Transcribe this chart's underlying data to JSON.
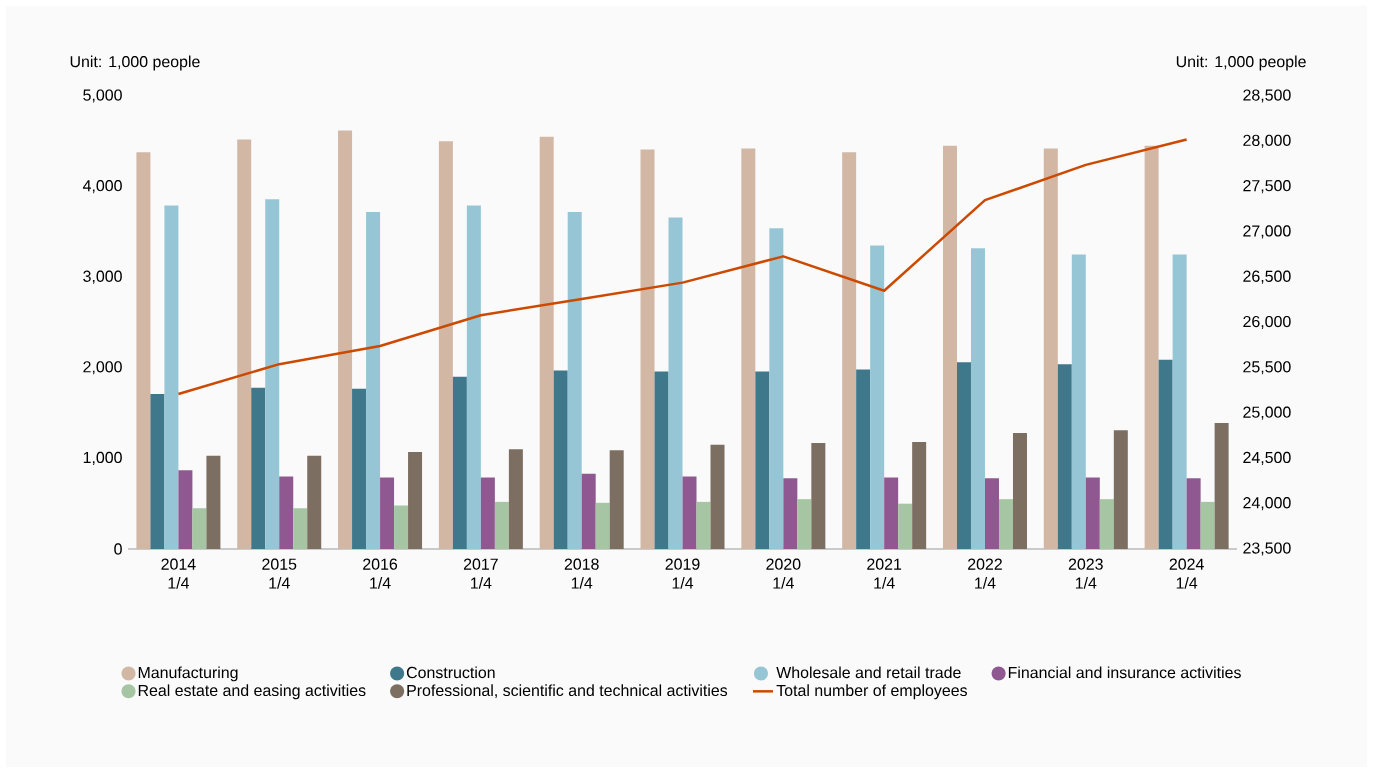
{
  "chart_data": {
    "type": "bar",
    "ylabel": "Unit: 1,000 people",
    "y2label": "Unit: 1,000 people",
    "categories": [
      "2014 1/4",
      "2015 1/4",
      "2016 1/4",
      "2017 1/4",
      "2018 1/4",
      "2019 1/4",
      "2020 1/4",
      "2021 1/4",
      "2022 1/4",
      "2023 1/4",
      "2024 1/4"
    ],
    "series": [
      {
        "name": "Manufacturing",
        "color": "#d2b7a5",
        "values": [
          4380,
          4520,
          4620,
          4500,
          4550,
          4410,
          4420,
          4380,
          4450,
          4420,
          4450
        ]
      },
      {
        "name": "Construction",
        "color": "#3f778b",
        "values": [
          1710,
          1780,
          1770,
          1900,
          1970,
          1960,
          1960,
          1980,
          2060,
          2040,
          2090
        ]
      },
      {
        "name": "Wholesale and retail trade",
        "color": "#96c6d6",
        "values": [
          3790,
          3860,
          3720,
          3790,
          3720,
          3660,
          3540,
          3350,
          3320,
          3250,
          3250
        ]
      },
      {
        "name": "Financial and insurance activities",
        "color": "#8f5890",
        "values": [
          870,
          800,
          790,
          790,
          830,
          800,
          780,
          790,
          780,
          790,
          780
        ]
      },
      {
        "name": "Real estate and easing activities",
        "color": "#a6c5a3",
        "values": [
          450,
          450,
          480,
          520,
          510,
          520,
          550,
          500,
          550,
          550,
          520
        ]
      },
      {
        "name": "Professional, scientific and technical activities",
        "color": "#7d6e62",
        "values": [
          1030,
          1030,
          1070,
          1100,
          1090,
          1150,
          1170,
          1180,
          1280,
          1310,
          1390
        ]
      },
      {
        "name": "Total number of employees",
        "type": "line",
        "axis": "y2",
        "color": "#cc4a00",
        "values": [
          25210,
          25540,
          25740,
          26080,
          26260,
          26440,
          26730,
          26350,
          27350,
          27740,
          28020
        ]
      }
    ],
    "ylim": [
      0,
      5000
    ],
    "yticks": [
      {
        "value": 0,
        "label": "0"
      },
      {
        "value": 1000,
        "label": "1,000"
      },
      {
        "value": 2000,
        "label": "2,000"
      },
      {
        "value": 3000,
        "label": "3,000"
      },
      {
        "value": 4000,
        "label": "4,000"
      },
      {
        "value": 5000,
        "label": "5,000"
      }
    ],
    "y2lim": [
      23500,
      28500
    ],
    "y2ticks": [
      {
        "value": 23500,
        "label": "23,500"
      },
      {
        "value": 24000,
        "label": "24,000"
      },
      {
        "value": 24500,
        "label": "24,500"
      },
      {
        "value": 25000,
        "label": "25,000"
      },
      {
        "value": 25500,
        "label": "25,500"
      },
      {
        "value": 26000,
        "label": "26,000"
      },
      {
        "value": 26500,
        "label": "26,500"
      },
      {
        "value": 27000,
        "label": "27,000"
      },
      {
        "value": 27500,
        "label": "27,500"
      },
      {
        "value": 28000,
        "label": "28,000"
      },
      {
        "value": 28500,
        "label": "28,500"
      }
    ],
    "legend": "bottom"
  }
}
